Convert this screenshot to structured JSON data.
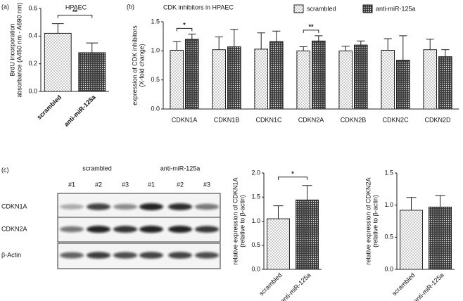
{
  "chart_data": [
    {
      "type": "bar",
      "panel": "(a)",
      "title": "HPAEC",
      "ylabel": [
        "BrdU incorporation",
        "absorbance (A450 nm - A690 nm)"
      ],
      "categories": [
        "scrambled",
        "anti-miR-125a"
      ],
      "values": [
        0.42,
        0.28
      ],
      "errors": [
        0.07,
        0.07
      ],
      "ylim": [
        0,
        0.6
      ],
      "yticks": [
        {
          "value": 0,
          "label": "0.0"
        },
        0.2,
        0.4,
        0.6
      ],
      "annotations": [
        {
          "text": "**",
          "between": [
            "scrambled",
            "anti-miR-125a"
          ]
        }
      ]
    },
    {
      "type": "grouped-bar",
      "panel": "(b)",
      "title": "CDK inhibitors in HPAEC",
      "ylabel": [
        "expression of CDK inhibitors",
        "(X-fold change)"
      ],
      "categories": [
        "CDKN1A",
        "CDKN1B",
        "CDKN1C",
        "CDKN2A",
        "CDKN2B",
        "CDKN2C",
        "CDKN2D"
      ],
      "series": [
        {
          "name": "scrambled",
          "values": [
            1.01,
            1.02,
            1.03,
            1.0,
            1.0,
            1.01,
            1.02
          ],
          "errors": [
            0.15,
            0.22,
            0.28,
            0.07,
            0.08,
            0.2,
            0.18
          ]
        },
        {
          "name": "anti-miR-125a",
          "values": [
            1.2,
            1.07,
            1.16,
            1.17,
            1.1,
            0.84,
            0.9
          ],
          "errors": [
            0.09,
            0.3,
            0.18,
            0.09,
            0.07,
            0.42,
            0.12
          ]
        }
      ],
      "ylim": [
        0,
        1.5
      ],
      "yticks": [
        {
          "value": 0,
          "label": "0.0"
        },
        0.5,
        {
          "value": 1,
          "label": "1.0"
        },
        1.5
      ],
      "legend": "top-right",
      "annotations": [
        {
          "text": "*",
          "category": "CDKN1A"
        },
        {
          "text": "**",
          "category": "CDKN2A"
        }
      ]
    },
    {
      "type": "bar",
      "ylabel": [
        "relative expression of CDKN1A",
        "(relative to β-actin)"
      ],
      "categories": [
        "scrambled",
        "anti-miR-125a"
      ],
      "values": [
        1.05,
        1.44
      ],
      "errors": [
        0.27,
        0.3
      ],
      "ylim": [
        0,
        2
      ],
      "yticks": [
        {
          "value": 0,
          "label": "0.0"
        },
        0.5,
        {
          "value": 1,
          "label": "1.0"
        },
        1.5,
        {
          "value": 2,
          "label": "2.0"
        }
      ],
      "annotations": [
        {
          "text": "*",
          "between": [
            "scrambled",
            "anti-miR-125a"
          ]
        }
      ]
    },
    {
      "type": "bar",
      "ylabel": [
        "relative expression of CDKN2A",
        "(relative to β-actin)"
      ],
      "categories": [
        "scrambled",
        "anti-miR-125a"
      ],
      "values": [
        0.92,
        0.97
      ],
      "errors": [
        0.2,
        0.18
      ],
      "ylim": [
        0,
        1.5
      ],
      "yticks": [
        {
          "value": 0,
          "label": "0.0"
        },
        0.5,
        {
          "value": 1,
          "label": "1.0"
        },
        1.5
      ],
      "annotations": []
    }
  ],
  "blot": {
    "panel": "(c)",
    "groups": [
      "scrambled",
      "anti-miR-125a"
    ],
    "lanes": [
      "#1",
      "#2",
      "#3",
      "#1",
      "#2",
      "#3"
    ],
    "rows": [
      "CDKN1A",
      "CDKN2A",
      "β-Actin"
    ]
  }
}
